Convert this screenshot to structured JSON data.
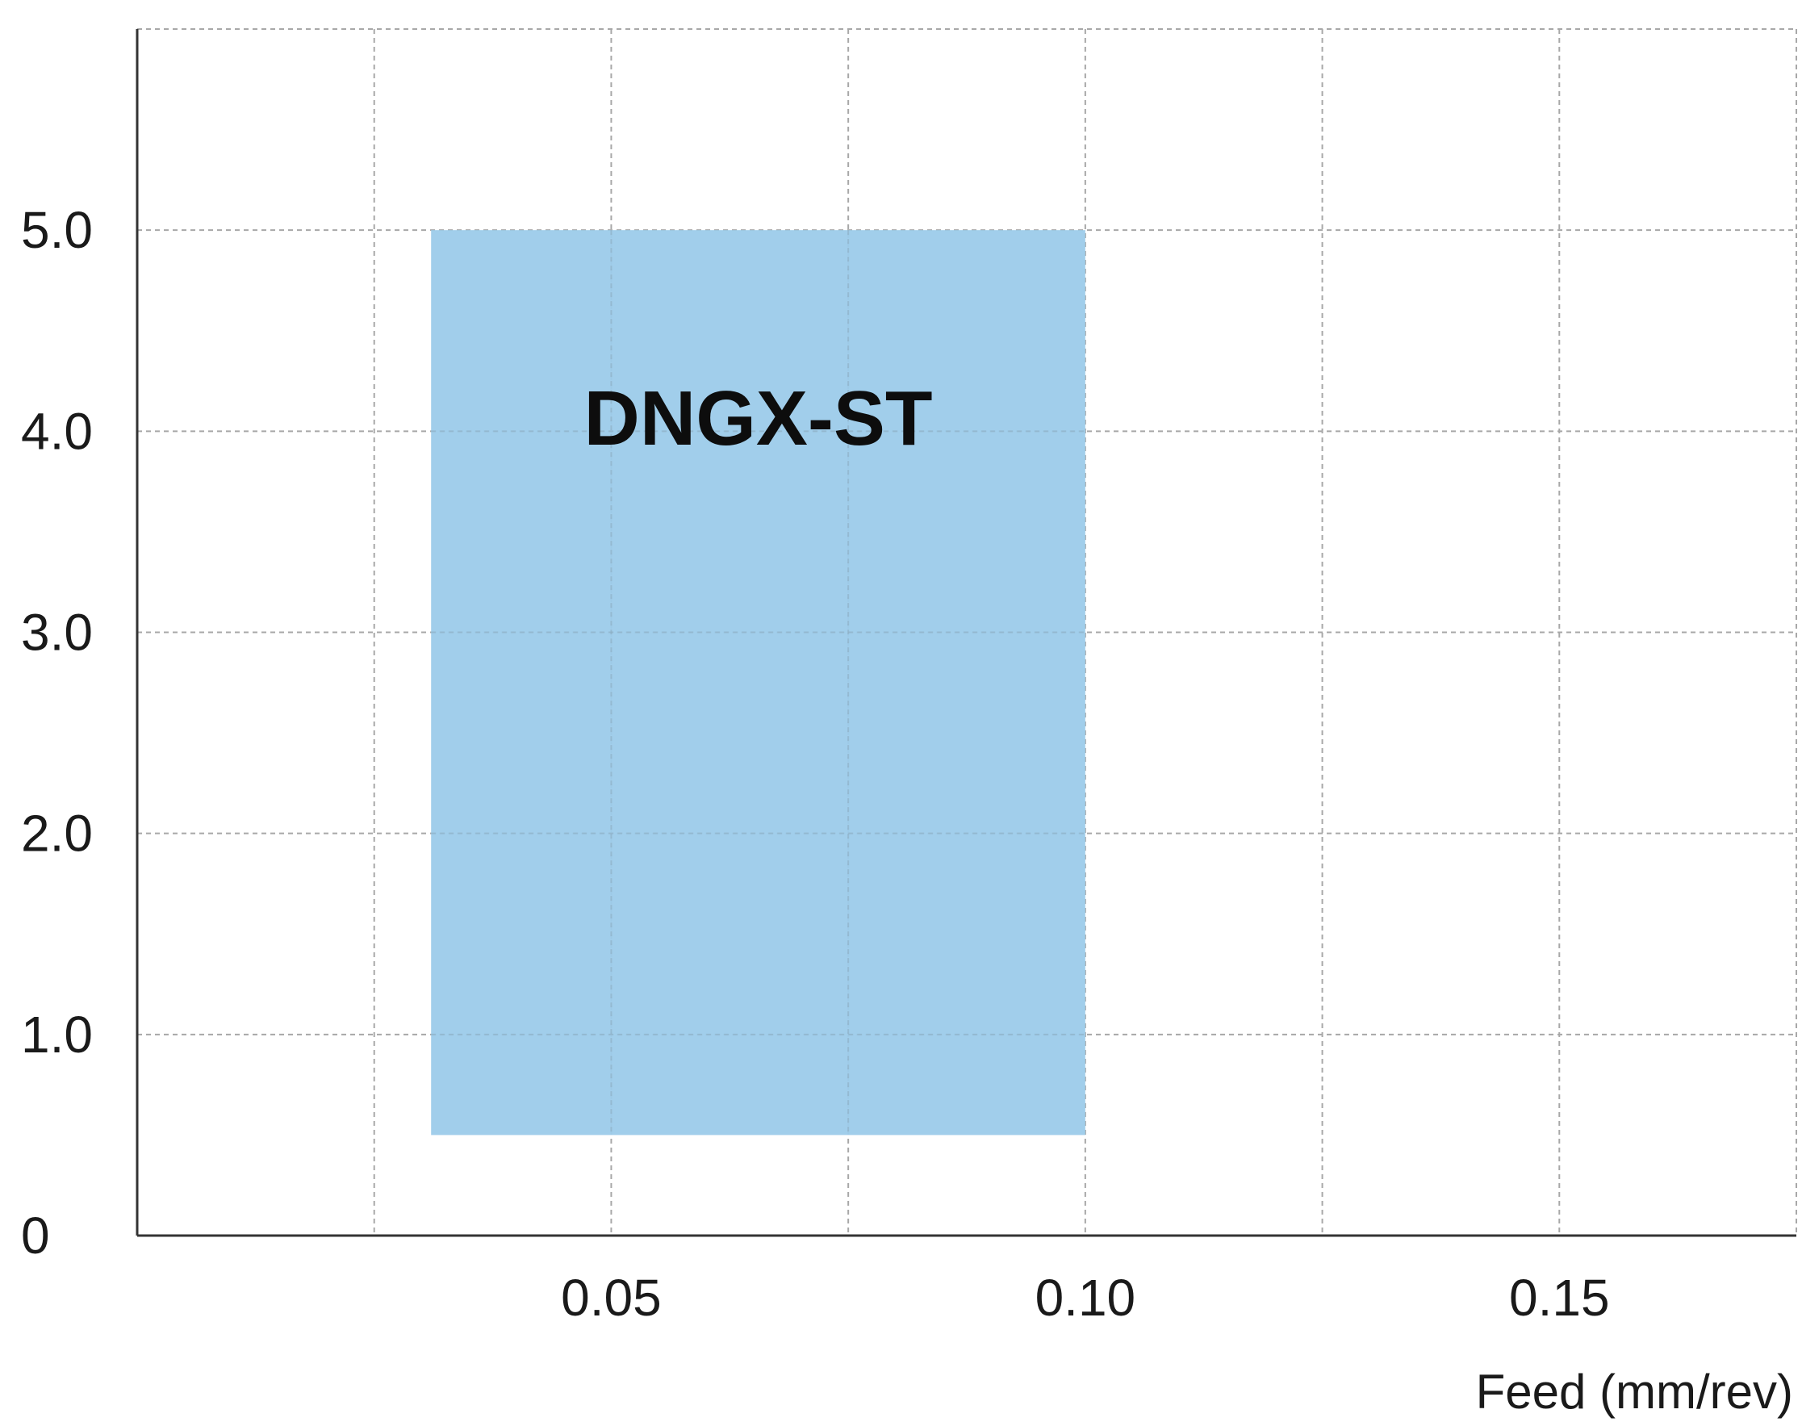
{
  "chart_data": {
    "type": "area",
    "title": "",
    "xlabel": "Feed (mm/rev)",
    "ylabel": "",
    "xlim": [
      0,
      0.175
    ],
    "ylim": [
      0,
      6.0
    ],
    "x_ticks": [
      {
        "value": 0.05,
        "label": "0.05"
      },
      {
        "value": 0.1,
        "label": "0.10"
      },
      {
        "value": 0.15,
        "label": "0.15"
      }
    ],
    "y_ticks": [
      {
        "value": 0,
        "label": "0"
      },
      {
        "value": 1.0,
        "label": "1.0"
      },
      {
        "value": 2.0,
        "label": "2.0"
      },
      {
        "value": 3.0,
        "label": "3.0"
      },
      {
        "value": 4.0,
        "label": "4.0"
      },
      {
        "value": 5.0,
        "label": "5.0"
      }
    ],
    "x_gridlines": [
      0.025,
      0.05,
      0.075,
      0.1,
      0.125,
      0.15,
      0.175
    ],
    "y_gridlines": [
      1.0,
      2.0,
      3.0,
      4.0,
      5.0,
      6.0
    ],
    "grid": true,
    "regions": [
      {
        "name": "DNGX-ST",
        "x_min": 0.031,
        "x_max": 0.1,
        "y_min": 0.5,
        "y_max": 5.0,
        "color": "#9ccbea"
      }
    ]
  }
}
